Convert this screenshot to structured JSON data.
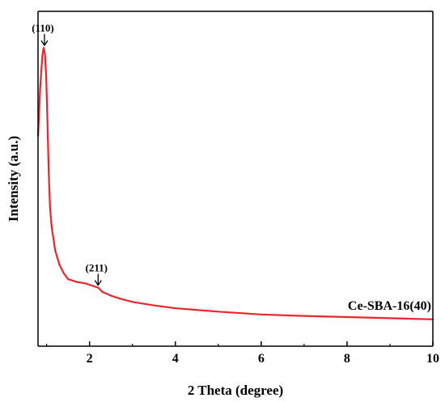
{
  "chart_data": {
    "type": "line",
    "xlabel": "2 Theta (degree)",
    "ylabel": "Intensity (a.u.)",
    "xlim": [
      0.8,
      10
    ],
    "ylim": [
      0,
      100
    ],
    "x_ticks": [
      2,
      4,
      6,
      8,
      10
    ],
    "y_ticks_shown": false,
    "grid": false,
    "series": [
      {
        "name": "Ce-SBA-16(40)",
        "color": "#e8262b",
        "x": [
          0.8,
          0.85,
          0.9,
          0.93,
          0.96,
          0.99,
          1.02,
          1.05,
          1.08,
          1.12,
          1.16,
          1.2,
          1.3,
          1.4,
          1.5,
          1.7,
          1.9,
          2.1,
          2.2,
          2.3,
          2.5,
          2.7,
          3.0,
          3.5,
          4.0,
          5.0,
          6.0,
          7.0,
          8.0,
          9.0,
          10.0
        ],
        "y": [
          65,
          82,
          93,
          96,
          94,
          86,
          70,
          52,
          40,
          33,
          29,
          25,
          20,
          17,
          15,
          14,
          13.5,
          12.5,
          12,
          10.5,
          9.2,
          8.2,
          7,
          5.8,
          4.8,
          3.6,
          2.6,
          2.1,
          1.7,
          1.3,
          0.9
        ]
      }
    ],
    "annotations": [
      {
        "text": "(110)",
        "x": 0.95,
        "y": 96
      },
      {
        "text": "(211)",
        "x": 2.2,
        "y": 12
      }
    ]
  }
}
